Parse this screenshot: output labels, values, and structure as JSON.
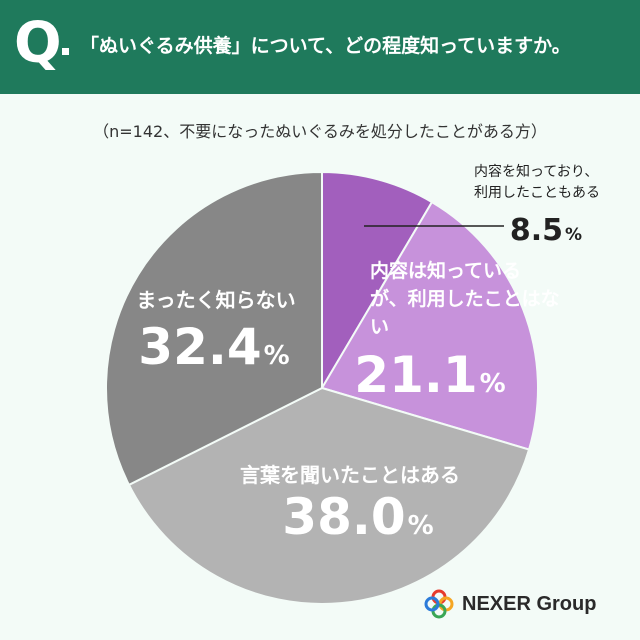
{
  "header": {
    "q_mark": "Q",
    "question": "「ぬいぐるみ供養」について、どの程度知っていますか。"
  },
  "note": "（n=142、不要になったぬいぐるみを処分したことがある方）",
  "chart_data": {
    "type": "pie",
    "title": "",
    "slices": [
      {
        "label": "内容を知っており、利用したこともある",
        "value": 8.5,
        "value_label": "8.5",
        "unit": "%",
        "color": "#a25fbd"
      },
      {
        "label": "内容は知っているが、利用したことはない",
        "value": 21.1,
        "value_label": "21.1",
        "unit": "%",
        "color": "#c792db"
      },
      {
        "label": "言葉を聞いたことはある",
        "value": 38.0,
        "value_label": "38.0",
        "unit": "%",
        "color": "#b3b3b3"
      },
      {
        "label": "まったく知らない",
        "value": 32.4,
        "value_label": "32.4",
        "unit": "%",
        "color": "#878787"
      }
    ]
  },
  "label_colors": {
    "inside": "#ffffff",
    "outside": "#222222",
    "leader": "#222222"
  },
  "brand": {
    "name": "NEXER Group",
    "logo_colors": [
      "#e63a2c",
      "#f5a623",
      "#3aa655",
      "#2c7bd9"
    ]
  }
}
